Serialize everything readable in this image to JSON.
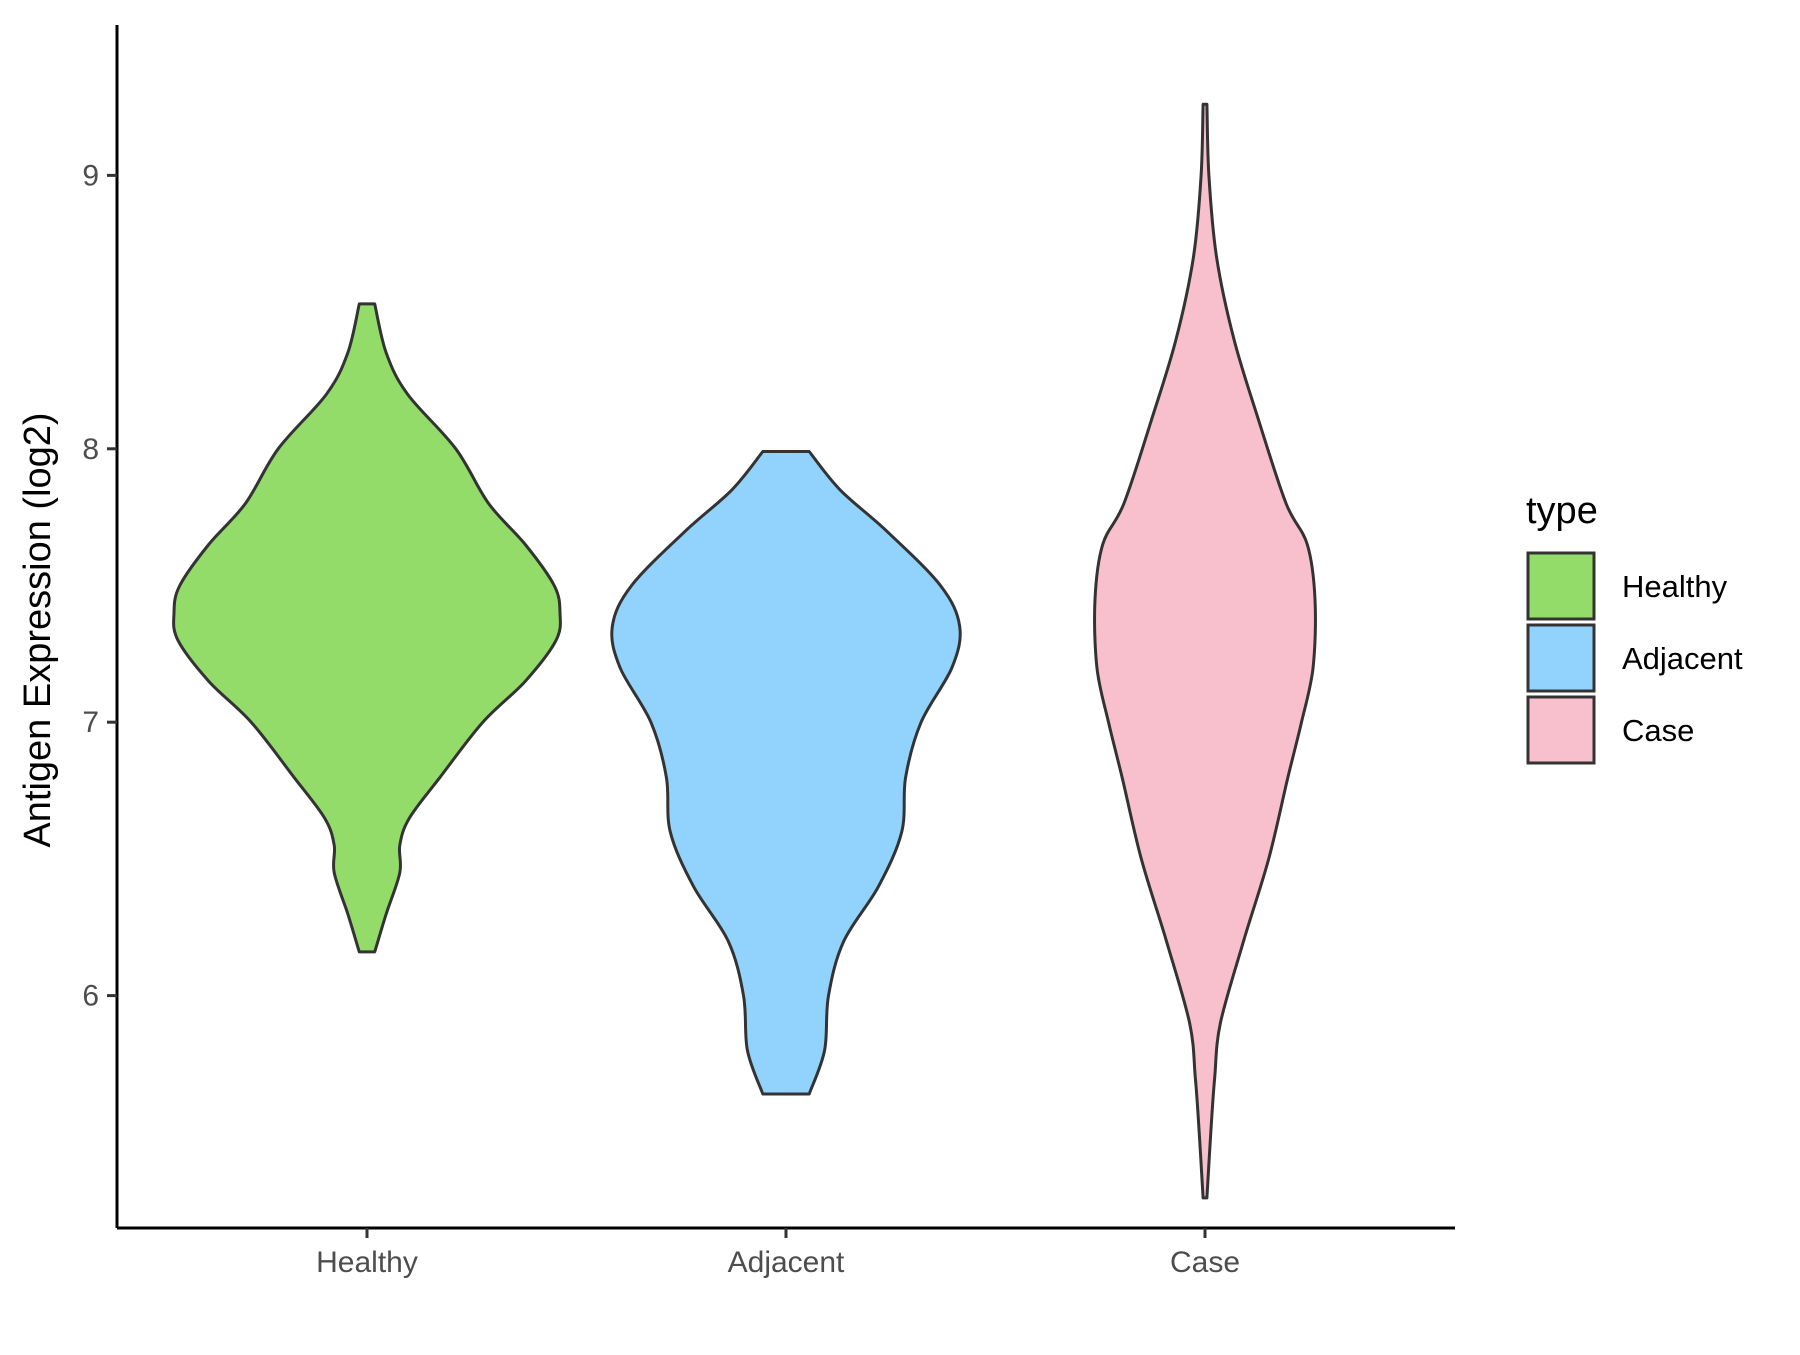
{
  "chart_data": {
    "type": "violin",
    "title": "",
    "xlabel": "",
    "ylabel": "Antigen Expression (log2)",
    "ylim": [
      5.15,
      9.55
    ],
    "yticks": [
      6,
      7,
      8,
      9
    ],
    "categories": [
      "Healthy",
      "Adjacent",
      "Case"
    ],
    "legend": {
      "title": "type",
      "position": "right",
      "items": [
        {
          "label": "Healthy",
          "color": "#93dc6a"
        },
        {
          "label": "Adjacent",
          "color": "#91d3fd"
        },
        {
          "label": "Case",
          "color": "#f7c0cc"
        }
      ]
    },
    "series": [
      {
        "category": "Healthy",
        "color": "#93dc6a",
        "min": 6.16,
        "max": 8.53,
        "density": [
          [
            6.16,
            0.04
          ],
          [
            6.3,
            0.1
          ],
          [
            6.45,
            0.17
          ],
          [
            6.55,
            0.17
          ],
          [
            6.65,
            0.22
          ],
          [
            6.8,
            0.38
          ],
          [
            7.0,
            0.6
          ],
          [
            7.15,
            0.82
          ],
          [
            7.3,
            0.98
          ],
          [
            7.4,
            1.0
          ],
          [
            7.5,
            0.97
          ],
          [
            7.65,
            0.82
          ],
          [
            7.8,
            0.63
          ],
          [
            8.0,
            0.46
          ],
          [
            8.2,
            0.21
          ],
          [
            8.35,
            0.1
          ],
          [
            8.53,
            0.04
          ]
        ]
      },
      {
        "category": "Adjacent",
        "color": "#91d3fd",
        "min": 5.64,
        "max": 7.99,
        "density": [
          [
            5.64,
            0.12
          ],
          [
            5.8,
            0.2
          ],
          [
            6.0,
            0.22
          ],
          [
            6.2,
            0.3
          ],
          [
            6.4,
            0.48
          ],
          [
            6.6,
            0.6
          ],
          [
            6.8,
            0.62
          ],
          [
            7.0,
            0.7
          ],
          [
            7.2,
            0.86
          ],
          [
            7.35,
            0.9
          ],
          [
            7.5,
            0.8
          ],
          [
            7.7,
            0.52
          ],
          [
            7.85,
            0.28
          ],
          [
            7.99,
            0.12
          ]
        ]
      },
      {
        "category": "Case",
        "color": "#f7c0cc",
        "min": 5.26,
        "max": 9.26,
        "density": [
          [
            5.26,
            0.01
          ],
          [
            5.5,
            0.03
          ],
          [
            5.7,
            0.05
          ],
          [
            5.9,
            0.08
          ],
          [
            6.2,
            0.2
          ],
          [
            6.5,
            0.33
          ],
          [
            6.8,
            0.43
          ],
          [
            7.0,
            0.5
          ],
          [
            7.2,
            0.56
          ],
          [
            7.45,
            0.57
          ],
          [
            7.65,
            0.53
          ],
          [
            7.8,
            0.42
          ],
          [
            8.1,
            0.28
          ],
          [
            8.4,
            0.15
          ],
          [
            8.7,
            0.06
          ],
          [
            9.0,
            0.02
          ],
          [
            9.26,
            0.01
          ]
        ]
      }
    ]
  }
}
